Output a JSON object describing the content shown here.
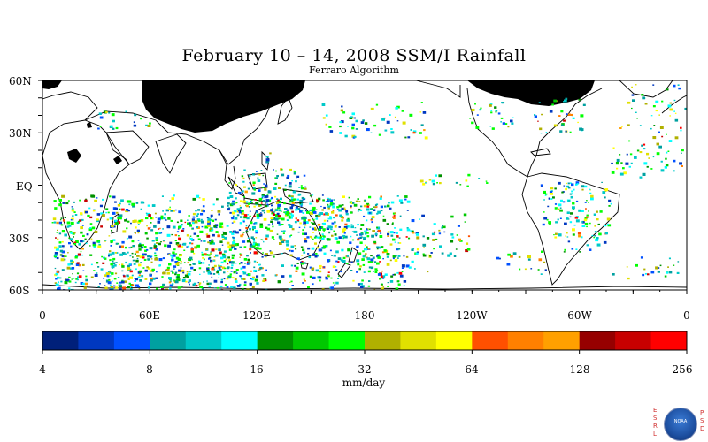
{
  "title": "February 10 – 14, 2008 SSM/I Rainfall",
  "subtitle": "Ferraro Algorithm",
  "lat_labels": [
    "60N",
    "30N",
    "EQ",
    "30S",
    "60S"
  ],
  "lon_labels": [
    "0",
    "60E",
    "120E",
    "180",
    "120W",
    "60W",
    "0"
  ],
  "colorbar": {
    "units": "mm/day",
    "tick_labels": [
      "4",
      "8",
      "16",
      "32",
      "64",
      "128",
      "256"
    ],
    "colors": [
      "#00207a",
      "#0038c0",
      "#0050ff",
      "#00a0a0",
      "#00c8c8",
      "#00ffff",
      "#009000",
      "#00c800",
      "#00ff00",
      "#b0b000",
      "#e0e000",
      "#ffff00",
      "#ff5000",
      "#ff8000",
      "#ffa000",
      "#960000",
      "#c80000",
      "#ff0000"
    ]
  },
  "logo": {
    "left_letters": "ESRL",
    "right_letters": "PSD",
    "emblem_text": "NOAA"
  }
}
